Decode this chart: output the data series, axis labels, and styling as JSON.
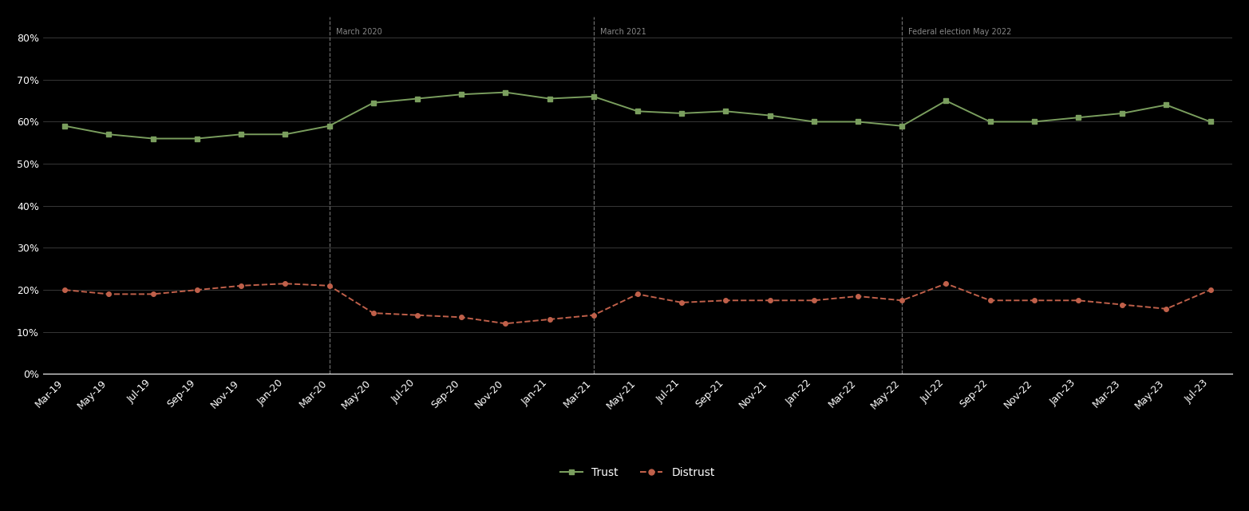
{
  "background_color": "#000000",
  "grid_color": "#ffffff",
  "text_color": "#ffffff",
  "trust_color": "#7a9e5e",
  "distrust_color": "#c0604a",
  "vline_color": "#888888",
  "ylim": [
    0,
    0.85
  ],
  "yticks": [
    0.0,
    0.1,
    0.2,
    0.3,
    0.4,
    0.5,
    0.6,
    0.7,
    0.8
  ],
  "ytick_labels": [
    "0%",
    "10%",
    "20%",
    "30%",
    "40%",
    "50%",
    "60%",
    "70%",
    "80%"
  ],
  "vline_positions": [
    "Mar-20",
    "Mar-21",
    "May-22"
  ],
  "annotation_texts": {
    "Mar-20": "March 2020",
    "Mar-21": "March 2021",
    "May-22": "Federal election May 2022"
  },
  "x_labels": [
    "Mar-19",
    "May-19",
    "Jul-19",
    "Sep-19",
    "Nov-19",
    "Jan-20",
    "Mar-20",
    "May-20",
    "Jul-20",
    "Sep-20",
    "Nov-20",
    "Jan-21",
    "Mar-21",
    "May-21",
    "Jul-21",
    "Sep-21",
    "Nov-21",
    "Jan-22",
    "Mar-22",
    "May-22",
    "Jul-22",
    "Sep-22",
    "Nov-22",
    "Jan-23",
    "Mar-23",
    "May-23",
    "Jul-23"
  ],
  "trust_values": [
    0.59,
    0.57,
    0.56,
    0.56,
    0.57,
    0.57,
    0.59,
    0.645,
    0.655,
    0.665,
    0.67,
    0.655,
    0.66,
    0.625,
    0.62,
    0.625,
    0.615,
    0.6,
    0.6,
    0.59,
    0.65,
    0.6,
    0.6,
    0.61,
    0.62,
    0.64,
    0.6
  ],
  "distrust_values": [
    0.2,
    0.19,
    0.19,
    0.2,
    0.21,
    0.215,
    0.21,
    0.145,
    0.14,
    0.135,
    0.12,
    0.13,
    0.14,
    0.19,
    0.17,
    0.175,
    0.175,
    0.175,
    0.185,
    0.175,
    0.215,
    0.175,
    0.175,
    0.175,
    0.165,
    0.155,
    0.2
  ],
  "legend_labels": [
    "Trust",
    "Distrust"
  ],
  "font_size_ticks": 9,
  "font_size_legend": 10,
  "font_size_annotation": 7,
  "annotation_color": "#888888"
}
